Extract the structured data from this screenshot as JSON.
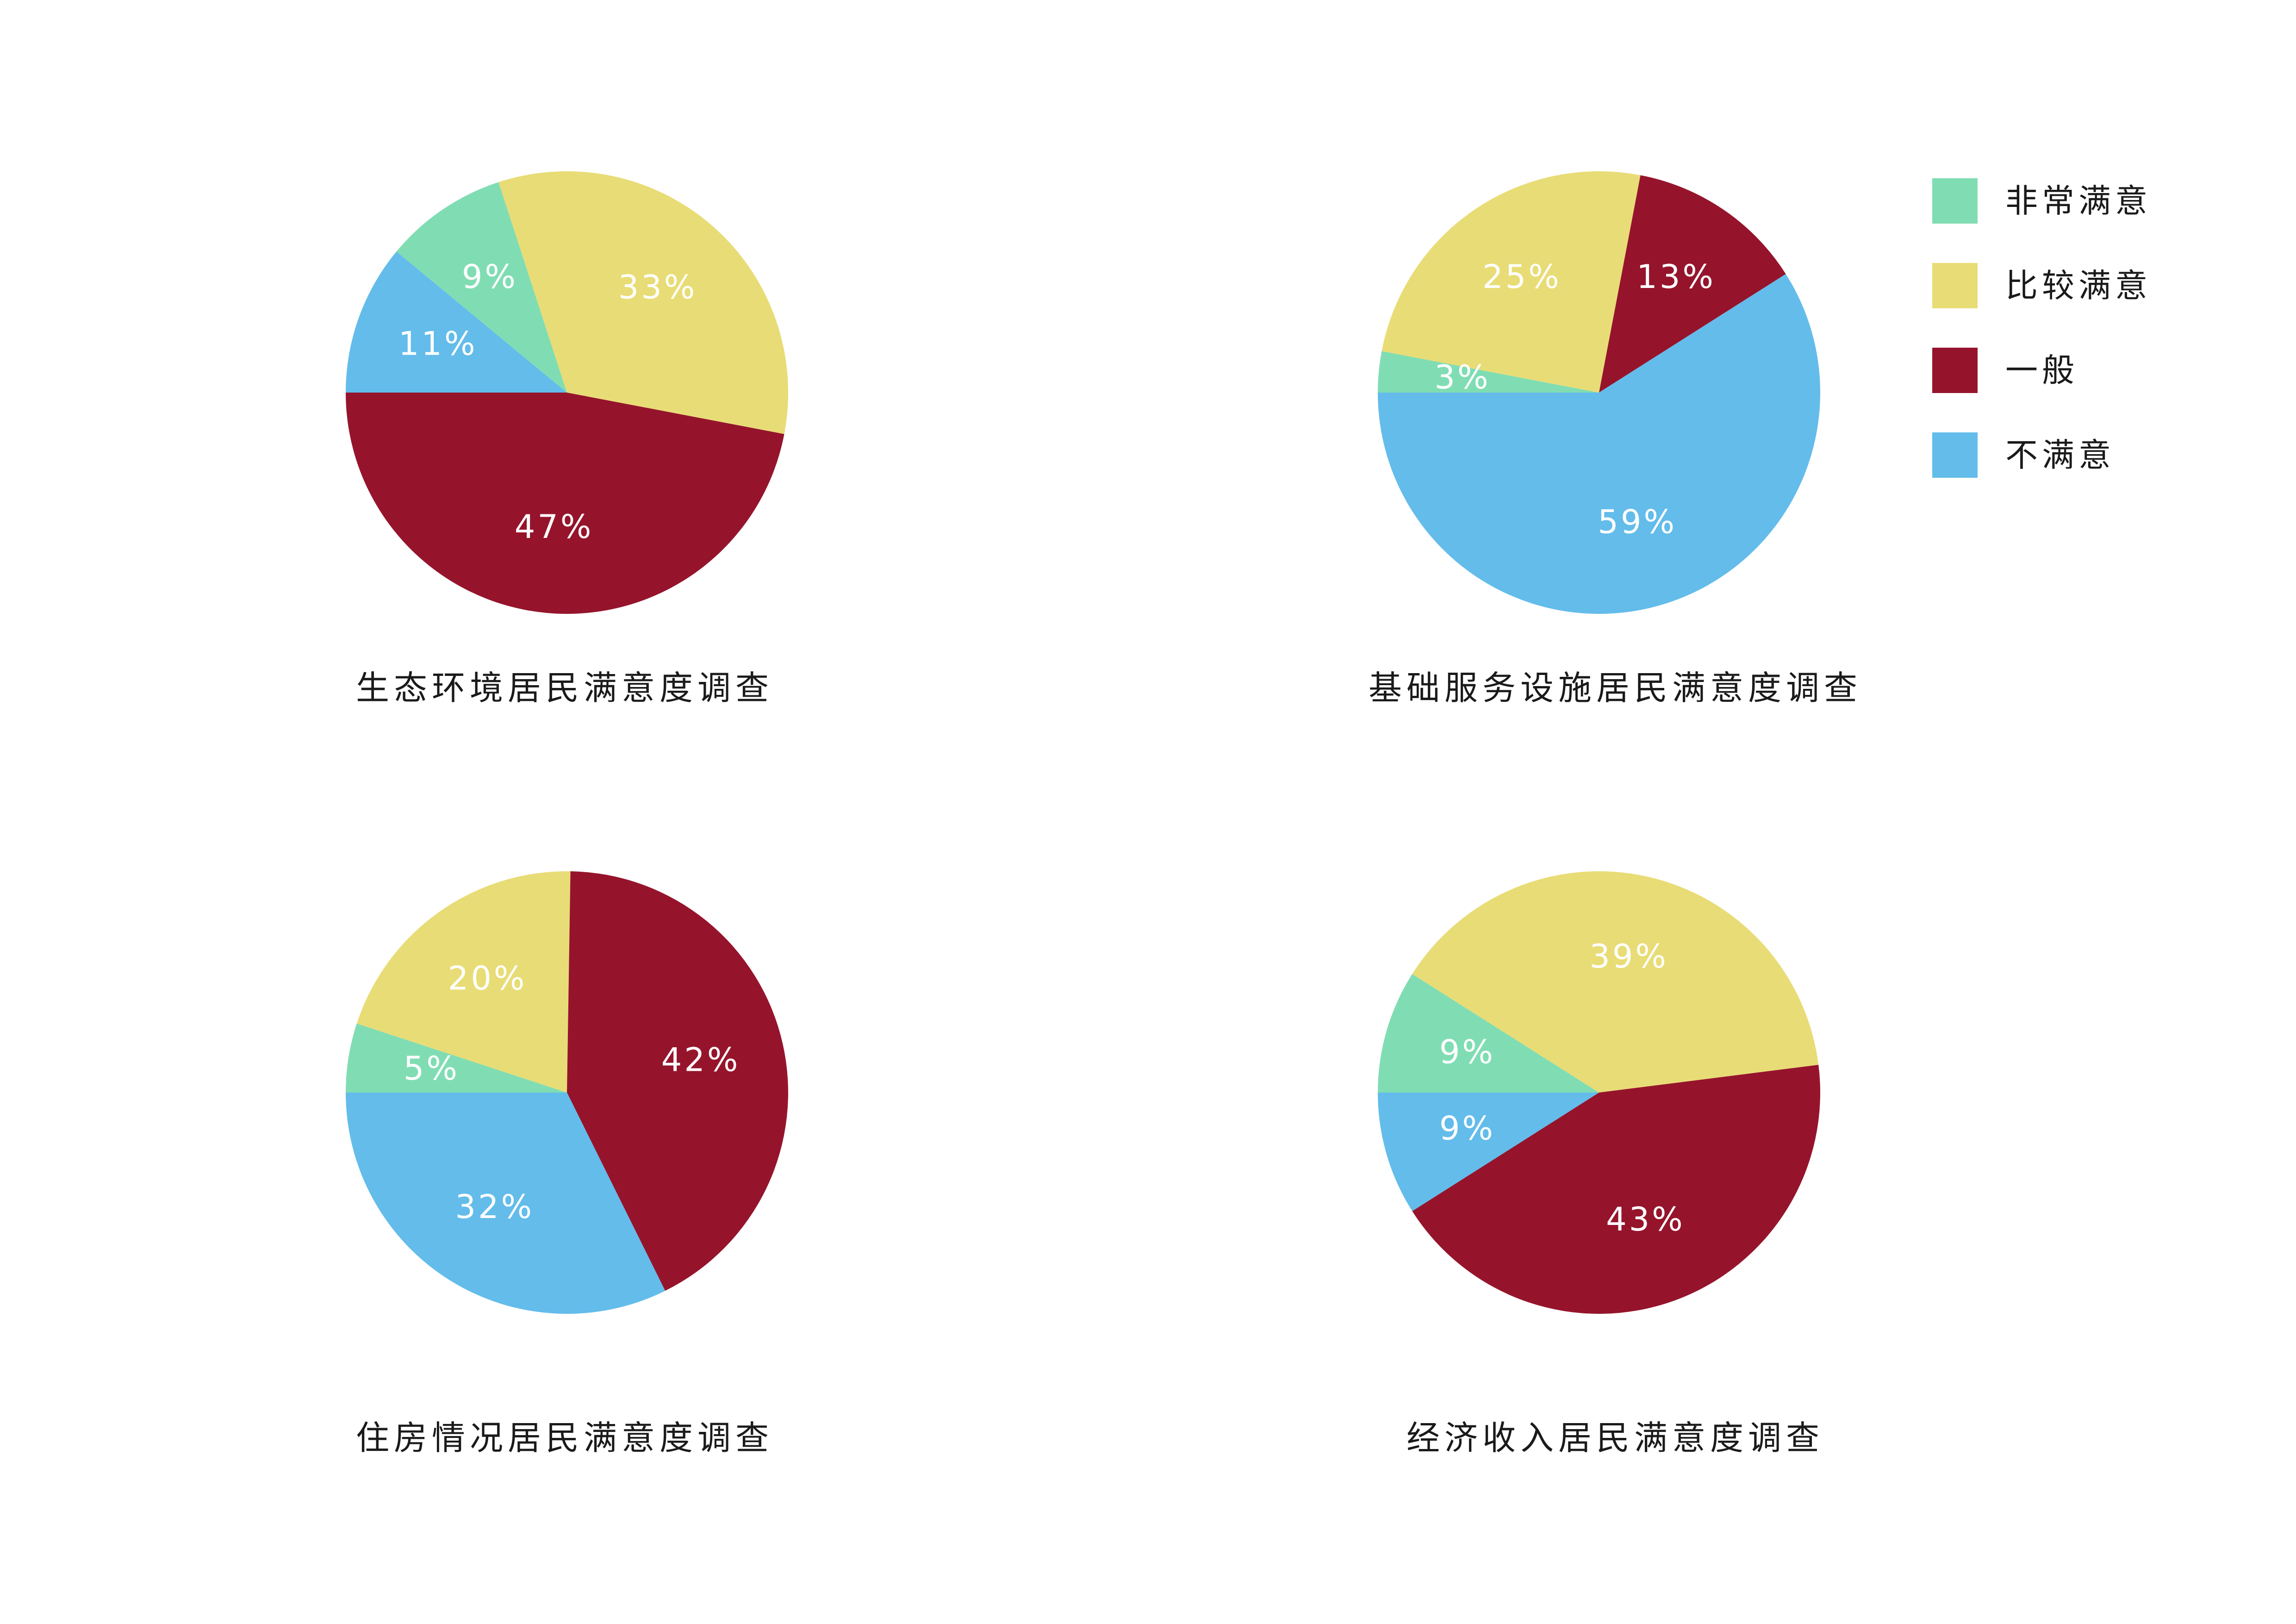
{
  "legend": {
    "items": [
      {
        "label": "非常满意",
        "color": "#80DDB3"
      },
      {
        "label": "比较满意",
        "color": "#E8DC76"
      },
      {
        "label": "一般",
        "color": "#95142C"
      },
      {
        "label": "不满意",
        "color": "#63BCEA"
      }
    ]
  },
  "titles": [
    "生态环境居民满意度调查",
    "基础服务设施居民满意度调查",
    "住房情况居民满意度调查",
    "经济收入居民满意度调查"
  ],
  "chart_data": [
    {
      "type": "pie",
      "title": "生态环境居民满意度调查",
      "slices": [
        {
          "label": "非常满意",
          "value": 9,
          "text": "9%",
          "color": "#80DDB3"
        },
        {
          "label": "比较满意",
          "value": 33,
          "text": "33%",
          "color": "#E8DC76"
        },
        {
          "label": "一般",
          "value": 47,
          "text": "47%",
          "color": "#95142C"
        },
        {
          "label": "不满意",
          "value": 11,
          "text": "11%",
          "color": "#63BCEA"
        }
      ]
    },
    {
      "type": "pie",
      "title": "基础服务设施居民满意度调查",
      "slices": [
        {
          "label": "非常满意",
          "value": 3,
          "text": "3%",
          "color": "#80DDB3"
        },
        {
          "label": "比较满意",
          "value": 25,
          "text": "25%",
          "color": "#E8DC76"
        },
        {
          "label": "一般",
          "value": 13,
          "text": "13%",
          "color": "#95142C"
        },
        {
          "label": "不满意",
          "value": 59,
          "text": "59%",
          "color": "#63BCEA"
        }
      ]
    },
    {
      "type": "pie",
      "title": "住房情况居民满意度调查",
      "slices": [
        {
          "label": "非常满意",
          "value": 5,
          "text": "5%",
          "color": "#80DDB3"
        },
        {
          "label": "比较满意",
          "value": 20,
          "text": "20%",
          "color": "#E8DC76"
        },
        {
          "label": "一般",
          "value": 42,
          "text": "42%",
          "color": "#95142C"
        },
        {
          "label": "不满意",
          "value": 32,
          "text": "32%",
          "color": "#63BCEA"
        }
      ]
    },
    {
      "type": "pie",
      "title": "经济收入居民满意度调查",
      "slices": [
        {
          "label": "非常满意",
          "value": 9,
          "text": "9%",
          "color": "#80DDB3"
        },
        {
          "label": "比较满意",
          "value": 39,
          "text": "39%",
          "color": "#E8DC76"
        },
        {
          "label": "一般",
          "value": 43,
          "text": "43%",
          "color": "#95142C"
        },
        {
          "label": "不满意",
          "value": 9,
          "text": "9%",
          "color": "#63BCEA"
        }
      ]
    }
  ]
}
